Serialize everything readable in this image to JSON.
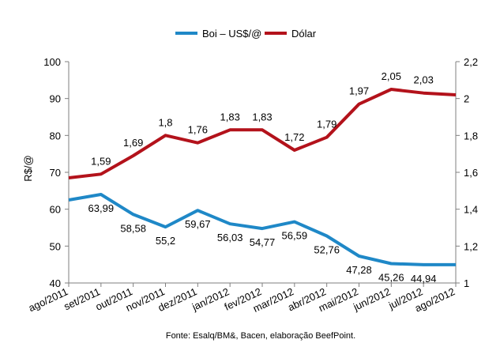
{
  "chart_data": {
    "type": "line",
    "categories": [
      "ago/2011",
      "set/2011",
      "out/2011",
      "nov/2011",
      "dez/2011",
      "jan/2012",
      "fev/2012",
      "mar/2012",
      "abr/2012",
      "mai/2012",
      "jun/2012",
      "jul/2012",
      "ago/2012"
    ],
    "series": [
      {
        "name": "Boi – US$/@",
        "axis": "left",
        "color": "#1f88c7",
        "values": [
          62.5,
          63.99,
          58.58,
          55.2,
          59.67,
          56.03,
          54.77,
          56.59,
          52.76,
          47.28,
          45.26,
          44.94,
          44.94
        ],
        "labels": [
          "",
          "63,99",
          "58,58",
          "55,2",
          "59,67",
          "56,03",
          "54,77",
          "56,59",
          "52,76",
          "47,28",
          "45,26",
          "44,94",
          ""
        ]
      },
      {
        "name": "Dólar",
        "axis": "right",
        "color": "#b3121b",
        "values": [
          1.57,
          1.59,
          1.69,
          1.8,
          1.76,
          1.83,
          1.83,
          1.72,
          1.79,
          1.97,
          2.05,
          2.03,
          2.02
        ],
        "labels": [
          "",
          "1,59",
          "1,69",
          "1,8",
          "1,76",
          "1,83",
          "1,83",
          "1,72",
          "1,79",
          "1,97",
          "2,05",
          "2,03",
          ""
        ]
      }
    ],
    "ylabel": "R$/@",
    "ylim": [
      40,
      100
    ],
    "yticks": [
      "40",
      "50",
      "60",
      "70",
      "80",
      "90",
      "100"
    ],
    "y2lim": [
      1,
      2.2
    ],
    "y2ticks": [
      "1",
      "1,2",
      "1,4",
      "1,6",
      "1,8",
      "2",
      "2,2"
    ],
    "grid": false,
    "legend_position": "top-center",
    "source_note": "Fonte: Esalq/BM&, Bacen, elaboração BeefPoint."
  }
}
